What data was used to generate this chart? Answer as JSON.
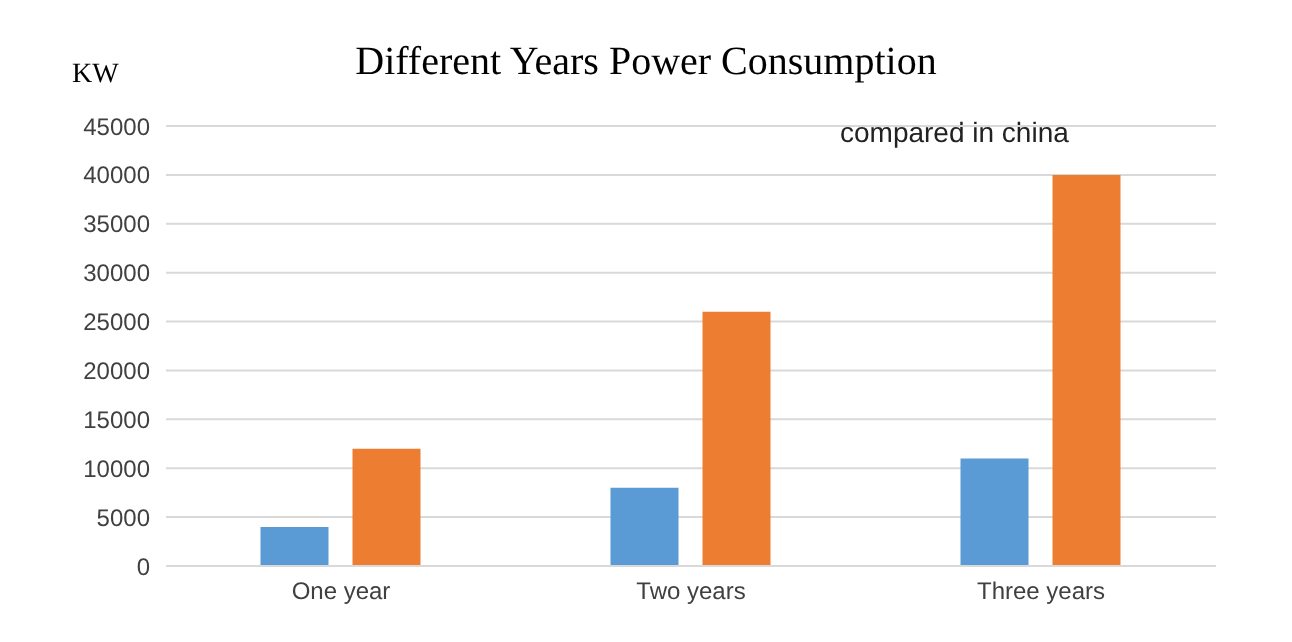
{
  "chart_data": {
    "type": "bar",
    "title": "Different  Years Power Consumption",
    "ylabel": "KW",
    "annotations": [
      "compared in china"
    ],
    "categories": [
      "One year",
      "Two years",
      "Three years"
    ],
    "series": [
      {
        "color": "#5b9bd5",
        "values": [
          4000,
          8000,
          11000
        ]
      },
      {
        "color": "#ed7d31",
        "values": [
          12000,
          26000,
          40000
        ]
      }
    ],
    "ylim": [
      0,
      45000
    ],
    "yticks": [
      0,
      5000,
      10000,
      15000,
      20000,
      25000,
      30000,
      35000,
      40000,
      45000
    ],
    "grid": "y"
  }
}
